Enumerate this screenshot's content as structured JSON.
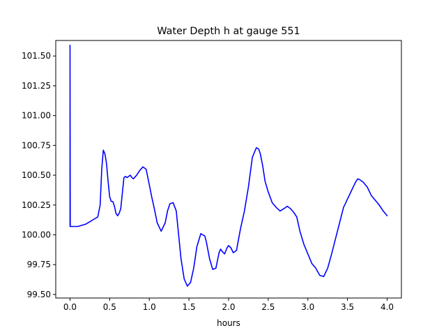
{
  "chart_data": {
    "type": "line",
    "title": "Water Depth h at gauge 551",
    "xlabel": "hours",
    "ylabel": "",
    "xlim": [
      -0.18,
      4.18
    ],
    "ylim": [
      99.47,
      101.63
    ],
    "grid": false,
    "x_ticks": [
      0.0,
      0.5,
      1.0,
      1.5,
      2.0,
      2.5,
      3.0,
      3.5,
      4.0
    ],
    "x_tick_labels": [
      "0.0",
      "0.5",
      "1.0",
      "1.5",
      "2.0",
      "2.5",
      "3.0",
      "3.5",
      "4.0"
    ],
    "y_ticks": [
      99.5,
      99.75,
      100.0,
      100.25,
      100.5,
      100.75,
      101.0,
      101.25,
      101.5
    ],
    "y_tick_labels": [
      "99.50",
      "99.75",
      "100.00",
      "100.25",
      "100.50",
      "100.75",
      "101.00",
      "101.25",
      "101.50"
    ],
    "series": [
      {
        "color": "#0000ff",
        "x": [
          0.0,
          0.0,
          0.003,
          0.05,
          0.1,
          0.15,
          0.2,
          0.25,
          0.3,
          0.35,
          0.38,
          0.4,
          0.42,
          0.44,
          0.46,
          0.48,
          0.5,
          0.52,
          0.54,
          0.56,
          0.58,
          0.6,
          0.62,
          0.64,
          0.66,
          0.68,
          0.7,
          0.72,
          0.74,
          0.76,
          0.78,
          0.8,
          0.84,
          0.88,
          0.92,
          0.96,
          1.0,
          1.03,
          1.06,
          1.1,
          1.15,
          1.2,
          1.23,
          1.26,
          1.3,
          1.34,
          1.37,
          1.4,
          1.44,
          1.48,
          1.52,
          1.56,
          1.6,
          1.65,
          1.7,
          1.72,
          1.76,
          1.8,
          1.84,
          1.88,
          1.9,
          1.92,
          1.95,
          1.98,
          2.0,
          2.03,
          2.06,
          2.1,
          2.15,
          2.2,
          2.25,
          2.3,
          2.35,
          2.38,
          2.4,
          2.43,
          2.46,
          2.5,
          2.55,
          2.6,
          2.65,
          2.7,
          2.74,
          2.78,
          2.82,
          2.86,
          2.9,
          2.95,
          3.0,
          3.05,
          3.1,
          3.15,
          3.2,
          3.25,
          3.3,
          3.35,
          3.4,
          3.45,
          3.5,
          3.55,
          3.6,
          3.63,
          3.66,
          3.7,
          3.75,
          3.8,
          3.85,
          3.9,
          3.95,
          4.0
        ],
        "values": [
          100.07,
          101.59,
          100.07,
          100.07,
          100.07,
          100.08,
          100.09,
          100.11,
          100.13,
          100.15,
          100.25,
          100.55,
          100.71,
          100.68,
          100.6,
          100.45,
          100.32,
          100.28,
          100.28,
          100.24,
          100.18,
          100.16,
          100.18,
          100.22,
          100.35,
          100.48,
          100.49,
          100.48,
          100.49,
          100.5,
          100.48,
          100.47,
          100.5,
          100.54,
          100.57,
          100.55,
          100.42,
          100.32,
          100.23,
          100.1,
          100.03,
          100.1,
          100.2,
          100.26,
          100.27,
          100.2,
          100.0,
          99.8,
          99.63,
          99.57,
          99.6,
          99.72,
          99.9,
          100.01,
          99.99,
          99.94,
          99.8,
          99.71,
          99.72,
          99.85,
          99.88,
          99.86,
          99.84,
          99.89,
          99.91,
          99.89,
          99.85,
          99.87,
          100.05,
          100.2,
          100.4,
          100.65,
          100.73,
          100.72,
          100.68,
          100.58,
          100.45,
          100.36,
          100.27,
          100.23,
          100.2,
          100.22,
          100.24,
          100.22,
          100.19,
          100.15,
          100.03,
          99.92,
          99.84,
          99.76,
          99.72,
          99.66,
          99.65,
          99.72,
          99.84,
          99.97,
          100.1,
          100.23,
          100.3,
          100.37,
          100.44,
          100.47,
          100.46,
          100.44,
          100.4,
          100.33,
          100.29,
          100.25,
          100.2,
          100.16
        ]
      }
    ]
  }
}
